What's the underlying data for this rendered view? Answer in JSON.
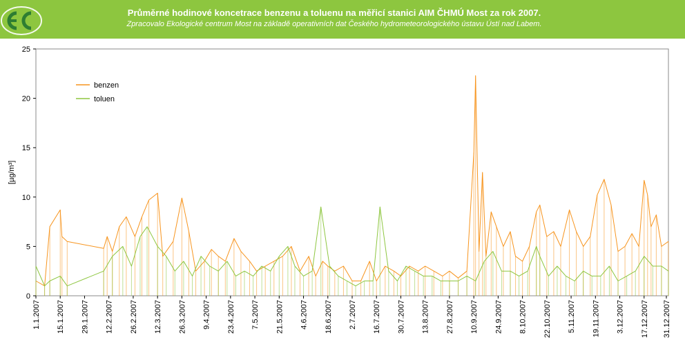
{
  "header": {
    "title": "Průměrné hodinové koncetrace benzenu a toluenu na měřicí stanici AIM ČHMÚ Most za rok 2007.",
    "subtitle": "Zpracovalo Ekologické centrum Most na základě operativních dat Českého hydrometeorologického ústavu Ústí nad Labem.",
    "logo_icon": "ec-logo-icon",
    "background_color": "#8dc63f"
  },
  "chart_data": {
    "type": "line",
    "title": "",
    "ylabel": "[µg/m³]",
    "xlabel": "",
    "ylim": [
      0,
      25
    ],
    "yticks": [
      0,
      5,
      10,
      15,
      20,
      25
    ],
    "xlim": [
      "2007-01-01",
      "2007-12-31"
    ],
    "xtick_labels": [
      "1.1.2007",
      "15.1.2007",
      "29.1.2007",
      "12.2.2007",
      "26.2.2007",
      "12.3.2007",
      "26.3.2007",
      "9.4.2007",
      "23.4.2007",
      "7.5.2007",
      "21.5.2007",
      "4.6.2007",
      "18.6.2007",
      "2.7.2007",
      "16.7.2007",
      "30.7.2007",
      "13.8.2007",
      "27.8.2007",
      "10.9.2007",
      "24.9.2007",
      "8.10.2007",
      "22.10.2007",
      "5.11.2007",
      "19.11.2007",
      "3.12.2007",
      "17.12.2007",
      "31.12.2007"
    ],
    "grid": false,
    "legend_position": "top-left",
    "series": [
      {
        "name": "benzen",
        "color": "#f7941d",
        "x": [
          "2007-01-01",
          "2007-01-06",
          "2007-01-09",
          "2007-01-15",
          "2007-01-16",
          "2007-01-19",
          "2007-02-09",
          "2007-02-11",
          "2007-02-14",
          "2007-02-18",
          "2007-02-22",
          "2007-02-27",
          "2007-03-03",
          "2007-03-07",
          "2007-03-12",
          "2007-03-15",
          "2007-03-21",
          "2007-03-26",
          "2007-03-30",
          "2007-04-03",
          "2007-04-08",
          "2007-04-12",
          "2007-04-16",
          "2007-04-20",
          "2007-04-25",
          "2007-04-29",
          "2007-05-04",
          "2007-05-08",
          "2007-05-13",
          "2007-05-18",
          "2007-05-23",
          "2007-05-28",
          "2007-06-02",
          "2007-06-07",
          "2007-06-11",
          "2007-06-15",
          "2007-06-18",
          "2007-06-22",
          "2007-06-27",
          "2007-07-02",
          "2007-07-07",
          "2007-07-12",
          "2007-07-16",
          "2007-07-21",
          "2007-07-26",
          "2007-07-30",
          "2007-08-04",
          "2007-08-09",
          "2007-08-13",
          "2007-08-18",
          "2007-08-23",
          "2007-08-27",
          "2007-09-01",
          "2007-09-06",
          "2007-09-10",
          "2007-09-11",
          "2007-09-13",
          "2007-09-15",
          "2007-09-17",
          "2007-09-20",
          "2007-09-23",
          "2007-09-27",
          "2007-10-01",
          "2007-10-04",
          "2007-10-08",
          "2007-10-12",
          "2007-10-16",
          "2007-10-18",
          "2007-10-22",
          "2007-10-26",
          "2007-10-30",
          "2007-11-04",
          "2007-11-08",
          "2007-11-12",
          "2007-11-16",
          "2007-11-20",
          "2007-11-24",
          "2007-11-28",
          "2007-12-02",
          "2007-12-06",
          "2007-12-10",
          "2007-12-14",
          "2007-12-17",
          "2007-12-19",
          "2007-12-21",
          "2007-12-24",
          "2007-12-27",
          "2007-12-31"
        ],
        "y": [
          1.5,
          1.0,
          7.0,
          8.7,
          6.0,
          5.5,
          4.8,
          6.0,
          4.5,
          7.0,
          8.0,
          6.0,
          8.0,
          9.7,
          10.4,
          4.0,
          5.5,
          9.9,
          6.5,
          2.5,
          3.5,
          4.7,
          4.0,
          3.5,
          5.8,
          4.5,
          3.5,
          2.5,
          3.0,
          3.5,
          4.0,
          5.0,
          2.5,
          4.0,
          2.0,
          3.5,
          3.0,
          2.5,
          3.0,
          1.5,
          1.5,
          3.5,
          1.5,
          3.0,
          2.5,
          2.0,
          3.0,
          2.5,
          3.0,
          2.5,
          2.0,
          2.5,
          1.8,
          2.5,
          14.5,
          22.3,
          4.5,
          12.5,
          4.0,
          8.5,
          7.0,
          5.0,
          6.5,
          4.0,
          3.5,
          5.0,
          8.5,
          9.2,
          6.0,
          6.5,
          5.0,
          8.7,
          6.5,
          5.0,
          6.0,
          10.2,
          11.8,
          9.2,
          4.5,
          5.0,
          6.3,
          5.0,
          11.7,
          10.2,
          7.0,
          8.2,
          5.0,
          5.5
        ]
      },
      {
        "name": "toluen",
        "color": "#8dc63f",
        "x": [
          "2007-01-01",
          "2007-01-06",
          "2007-01-09",
          "2007-01-15",
          "2007-01-19",
          "2007-02-09",
          "2007-02-14",
          "2007-02-20",
          "2007-02-25",
          "2007-03-02",
          "2007-03-06",
          "2007-03-12",
          "2007-03-17",
          "2007-03-22",
          "2007-03-27",
          "2007-04-01",
          "2007-04-06",
          "2007-04-11",
          "2007-04-16",
          "2007-04-21",
          "2007-04-26",
          "2007-05-01",
          "2007-05-06",
          "2007-05-11",
          "2007-05-16",
          "2007-05-21",
          "2007-05-26",
          "2007-05-30",
          "2007-06-04",
          "2007-06-09",
          "2007-06-14",
          "2007-06-19",
          "2007-06-24",
          "2007-06-29",
          "2007-07-04",
          "2007-07-09",
          "2007-07-14",
          "2007-07-18",
          "2007-07-23",
          "2007-07-28",
          "2007-08-02",
          "2007-08-07",
          "2007-08-12",
          "2007-08-17",
          "2007-08-22",
          "2007-08-27",
          "2007-09-01",
          "2007-09-06",
          "2007-09-11",
          "2007-09-16",
          "2007-09-21",
          "2007-09-26",
          "2007-10-01",
          "2007-10-06",
          "2007-10-11",
          "2007-10-16",
          "2007-10-18",
          "2007-10-23",
          "2007-10-28",
          "2007-11-02",
          "2007-11-07",
          "2007-11-12",
          "2007-11-17",
          "2007-11-22",
          "2007-11-27",
          "2007-12-02",
          "2007-12-07",
          "2007-12-12",
          "2007-12-17",
          "2007-12-22",
          "2007-12-27",
          "2007-12-31"
        ],
        "y": [
          3.0,
          1.0,
          1.5,
          2.0,
          1.0,
          2.5,
          4.0,
          5.0,
          3.0,
          6.0,
          7.0,
          5.0,
          4.0,
          2.5,
          3.5,
          2.0,
          4.0,
          3.0,
          2.5,
          3.5,
          2.0,
          2.5,
          2.0,
          3.0,
          2.5,
          4.0,
          5.0,
          3.0,
          2.0,
          2.5,
          9.0,
          3.0,
          2.0,
          1.5,
          1.0,
          1.5,
          1.5,
          9.0,
          2.5,
          1.5,
          3.0,
          2.5,
          2.0,
          2.0,
          1.5,
          1.5,
          1.5,
          2.0,
          1.5,
          3.5,
          4.5,
          2.5,
          2.5,
          2.0,
          2.5,
          5.0,
          4.0,
          2.0,
          3.0,
          2.0,
          1.5,
          2.5,
          2.0,
          2.0,
          3.0,
          1.5,
          2.0,
          2.5,
          4.0,
          3.0,
          3.0,
          2.5
        ]
      }
    ]
  }
}
